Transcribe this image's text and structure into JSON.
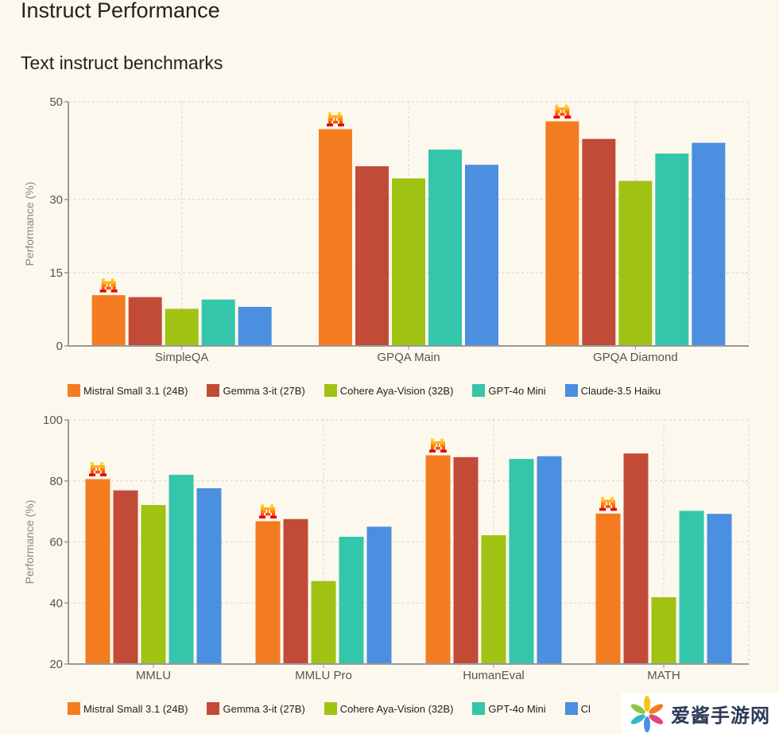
{
  "page": {
    "title": "Instruct Performance",
    "section_title": "Text instruct benchmarks"
  },
  "legend": [
    {
      "name": "Mistral Small 3.1 (24B)",
      "color": "#f47c20"
    },
    {
      "name": "Gemma 3-it (27B)",
      "color": "#c24b38"
    },
    {
      "name": "Cohere Aya-Vision (32B)",
      "color": "#a0c213"
    },
    {
      "name": "GPT-4o Mini",
      "color": "#33c6ab"
    },
    {
      "name": "Claude-3.5 Haiku",
      "color": "#4a8fe0"
    }
  ],
  "legend2_last_visible": "Cl",
  "watermark": {
    "text": "爱酱手游网"
  },
  "chart_data": [
    {
      "type": "bar",
      "title": "",
      "xlabel": "",
      "ylabel": "Performance (%)",
      "ylim": [
        0,
        50
      ],
      "yticks": [
        0,
        15,
        30,
        50
      ],
      "grid": true,
      "legend_position": "bottom",
      "categories": [
        "SimpleQA",
        "GPQA Main",
        "GPQA Diamond"
      ],
      "series": [
        {
          "name": "Mistral Small 3.1 (24B)",
          "values": [
            10.4,
            44.4,
            46.0
          ]
        },
        {
          "name": "Gemma 3-it (27B)",
          "values": [
            10.0,
            36.8,
            42.4
          ]
        },
        {
          "name": "Cohere Aya-Vision (32B)",
          "values": [
            7.6,
            34.3,
            33.8
          ]
        },
        {
          "name": "GPT-4o Mini",
          "values": [
            9.5,
            40.2,
            39.4
          ]
        },
        {
          "name": "Claude-3.5 Haiku",
          "values": [
            8.0,
            37.1,
            41.6
          ]
        }
      ],
      "highlight_marker": "mistral-logo above first series"
    },
    {
      "type": "bar",
      "title": "",
      "xlabel": "",
      "ylabel": "Performance (%)",
      "ylim": [
        20,
        100
      ],
      "yticks": [
        20,
        40,
        60,
        80,
        100
      ],
      "grid": true,
      "legend_position": "bottom",
      "categories": [
        "MMLU",
        "MMLU Pro",
        "HumanEval",
        "MATH"
      ],
      "series": [
        {
          "name": "Mistral Small 3.1 (24B)",
          "values": [
            80.6,
            66.8,
            88.4,
            69.3
          ]
        },
        {
          "name": "Gemma 3-it (27B)",
          "values": [
            76.9,
            67.5,
            87.8,
            89.0
          ]
        },
        {
          "name": "Cohere Aya-Vision (32B)",
          "values": [
            72.1,
            47.2,
            62.2,
            41.9
          ]
        },
        {
          "name": "GPT-4o Mini",
          "values": [
            82.0,
            61.7,
            87.2,
            70.2
          ]
        },
        {
          "name": "Claude-3.5 Haiku",
          "values": [
            77.6,
            65.0,
            88.1,
            69.2
          ]
        }
      ],
      "highlight_marker": "mistral-logo above first series"
    }
  ]
}
